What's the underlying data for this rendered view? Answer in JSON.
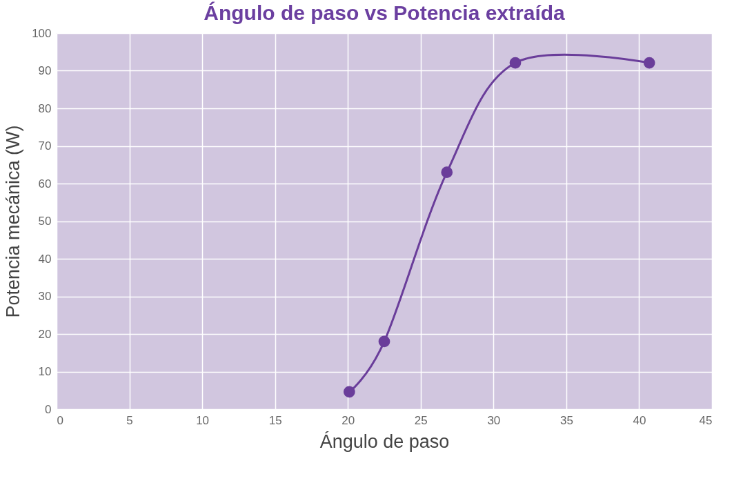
{
  "chart_data": {
    "type": "line",
    "title": "Ángulo de paso vs Potencia extraída",
    "xlabel": "Ángulo de paso",
    "ylabel": "Potencia mecánica (W)",
    "x": [
      20.1,
      22.5,
      26.8,
      31.5,
      40.7
    ],
    "series": [
      {
        "color": "#6a3d9a",
        "values": [
          4.6,
          18,
          63,
          92.1,
          92.1
        ]
      }
    ],
    "xlim": [
      0,
      45
    ],
    "xticks": [
      0,
      5,
      10,
      15,
      20,
      25,
      30,
      35,
      40,
      45
    ],
    "ylim": [
      0,
      100
    ],
    "yticks": [
      0,
      10,
      20,
      30,
      40,
      50,
      60,
      70,
      80,
      90,
      100
    ],
    "grid": true,
    "marker": "circle",
    "line_style": "solid"
  }
}
